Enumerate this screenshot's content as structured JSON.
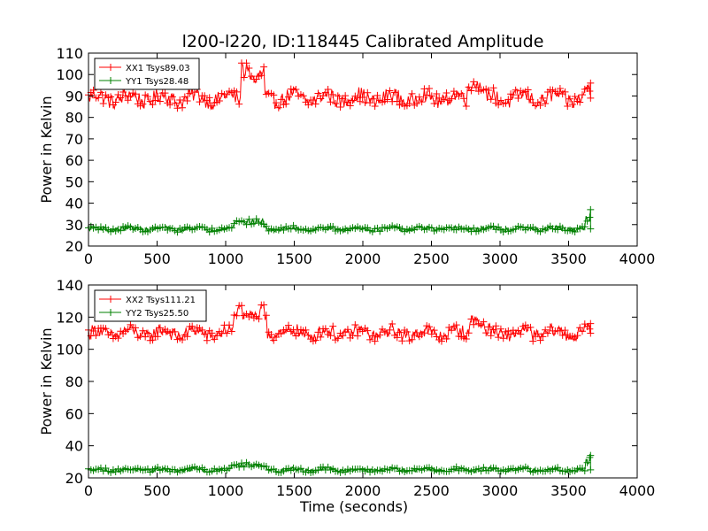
{
  "figure": {
    "title": "l200-l220, ID:118445 Calibrated Amplitude"
  },
  "chart_data": [
    {
      "type": "line",
      "title": "l200-l220, ID:118445 Calibrated Amplitude",
      "xlabel": "",
      "ylabel": "Power in Kelvin",
      "xlim": [
        0,
        4000
      ],
      "ylim": [
        20,
        110
      ],
      "xticks": [
        "0",
        "500",
        "1000",
        "1500",
        "2000",
        "2500",
        "3000",
        "3500",
        "4000"
      ],
      "yticks": [
        "20",
        "30",
        "40",
        "50",
        "60",
        "70",
        "80",
        "90",
        "100",
        "110"
      ],
      "legend_position": "top-left",
      "marker": "+",
      "x_range": [
        0,
        3660
      ],
      "series": [
        {
          "name": "XX1 Tsys89.03",
          "color": "#ff0000",
          "baseline": 89,
          "spread": 3.5,
          "events": [
            [
              1150,
              1240,
              106
            ],
            [
              2800,
              2830,
              98
            ],
            [
              3660,
              3660,
              96
            ]
          ],
          "range": [
            84,
            107
          ]
        },
        {
          "name": "YY1 Tsys28.48",
          "color": "#008000",
          "baseline": 28,
          "spread": 1.0,
          "events": [
            [
              1100,
              1240,
              33
            ],
            [
              3660,
              3660,
              37
            ]
          ],
          "range": [
            26,
            37
          ]
        }
      ]
    },
    {
      "type": "line",
      "title": "",
      "xlabel": "Time (seconds)",
      "ylabel": "Power in Kelvin",
      "xlim": [
        0,
        4000
      ],
      "ylim": [
        20,
        140
      ],
      "xticks": [
        "0",
        "500",
        "1000",
        "1500",
        "2000",
        "2500",
        "3000",
        "3500",
        "4000"
      ],
      "yticks": [
        "20",
        "40",
        "60",
        "80",
        "100",
        "120",
        "140"
      ],
      "legend_position": "top-left",
      "marker": "+",
      "x_range": [
        0,
        3660
      ],
      "series": [
        {
          "name": "XX2 Tsys111.21",
          "color": "#ff0000",
          "baseline": 110,
          "spread": 4.0,
          "events": [
            [
              1100,
              1260,
              128
            ],
            [
              2820,
              2840,
              122
            ],
            [
              3660,
              3660,
              116
            ]
          ],
          "range": [
            105,
            129
          ]
        },
        {
          "name": "YY2 Tsys25.50",
          "color": "#008000",
          "baseline": 25,
          "spread": 1.2,
          "events": [
            [
              1080,
              1260,
              30
            ],
            [
              3660,
              3660,
              34
            ]
          ],
          "range": [
            22,
            34
          ]
        }
      ]
    }
  ]
}
